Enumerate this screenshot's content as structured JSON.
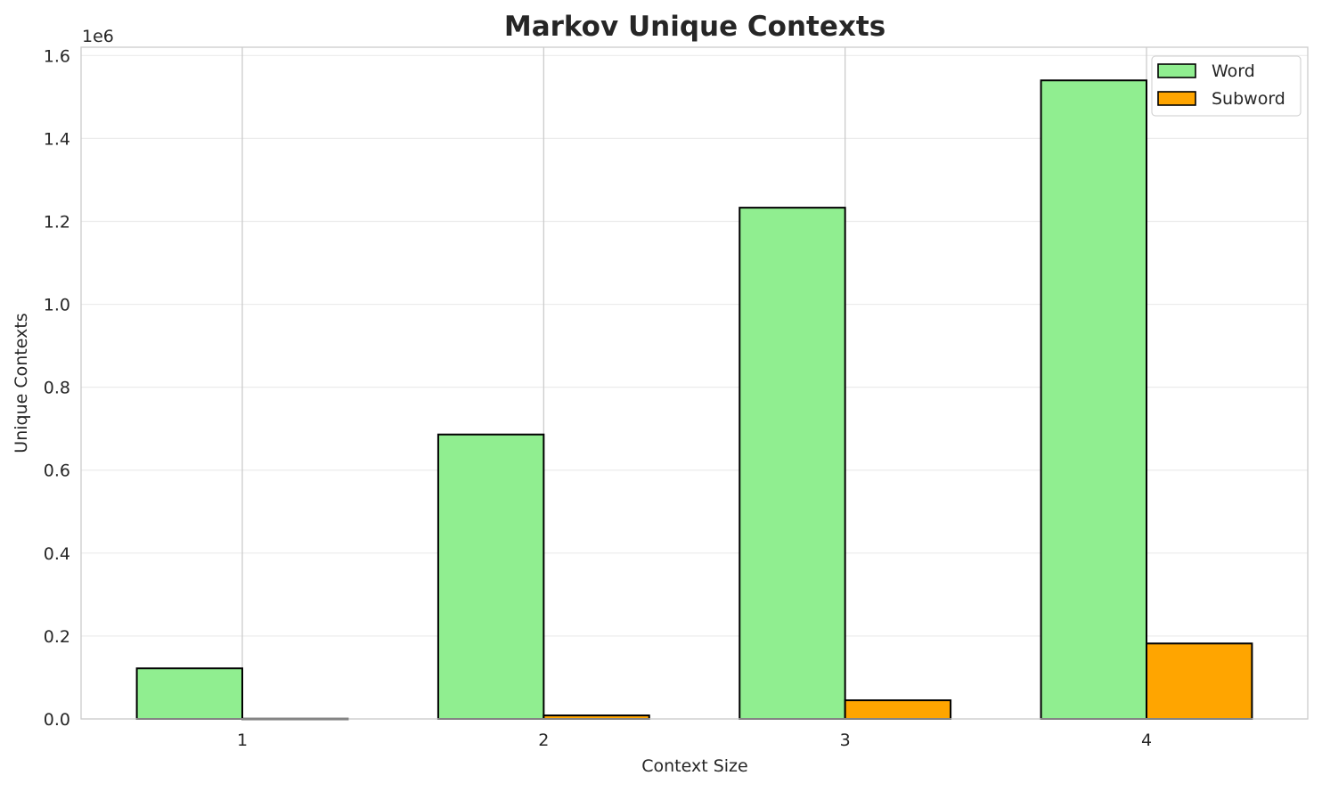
{
  "chart_data": {
    "type": "bar",
    "title": "Markov Unique Contexts",
    "xlabel": "Context Size",
    "ylabel": "Unique Contexts",
    "y_offset_label": "1e6",
    "categories": [
      "1",
      "2",
      "3",
      "4"
    ],
    "series": [
      {
        "name": "Word",
        "color": "#90ee90",
        "values": [
          122000,
          686000,
          1233000,
          1540000
        ]
      },
      {
        "name": "Subword",
        "color": "#ffa500",
        "values": [
          500,
          8500,
          45000,
          182000
        ]
      }
    ],
    "ylim": [
      0,
      1620000
    ],
    "yticks": [
      0,
      200000,
      400000,
      600000,
      800000,
      1000000,
      1200000,
      1400000,
      1600000
    ],
    "ytick_labels": [
      "0.0",
      "0.2",
      "0.4",
      "0.6",
      "0.8",
      "1.0",
      "1.2",
      "1.4",
      "1.6"
    ],
    "grid": true,
    "legend_position": "top-right"
  }
}
